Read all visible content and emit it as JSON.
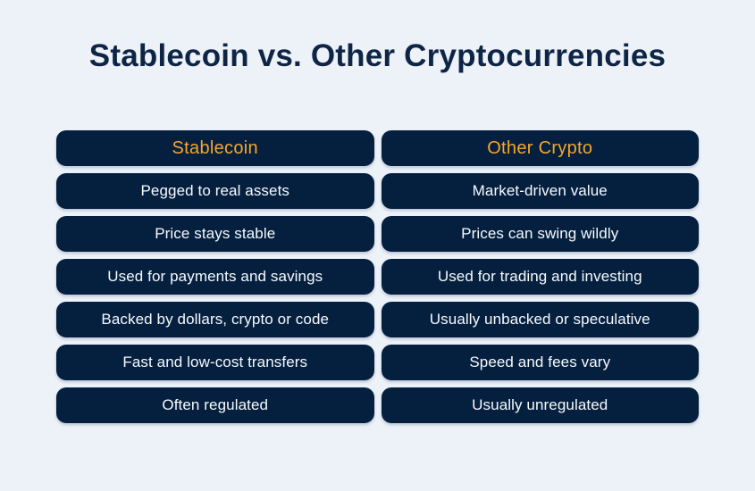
{
  "page": {
    "title": "Stablecoin vs. Other Cryptocurrencies"
  },
  "colors": {
    "background": "#EDF2F9",
    "cell_background": "#05203F",
    "title_text": "#0E2546",
    "header_text": "#F5A62B",
    "body_text": "#F7FAFD"
  },
  "table": {
    "columns": [
      {
        "header": "Stablecoin",
        "rows": [
          "Pegged to real assets",
          "Price stays stable",
          "Used for payments and savings",
          "Backed by dollars, crypto or code",
          "Fast and low-cost transfers",
          "Often regulated"
        ]
      },
      {
        "header": "Other Crypto",
        "rows": [
          "Market-driven value",
          "Prices can swing wildly",
          "Used for trading and investing",
          "Usually unbacked or speculative",
          "Speed and fees vary",
          "Usually unregulated"
        ]
      }
    ]
  }
}
